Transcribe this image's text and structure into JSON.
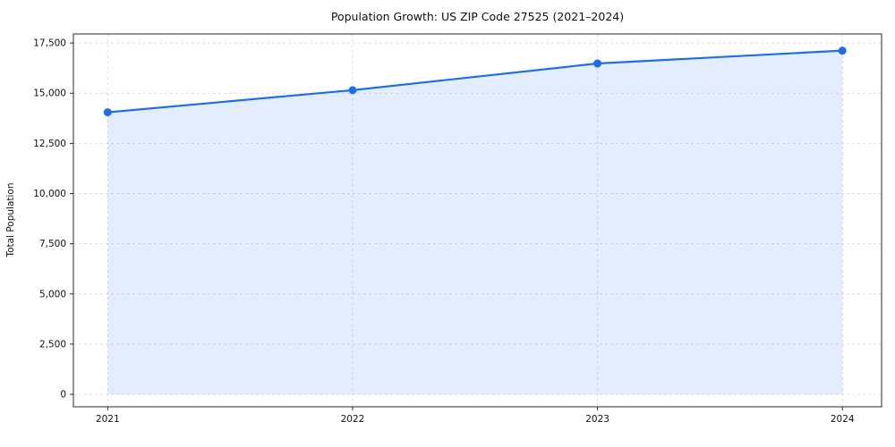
{
  "chart_data": {
    "type": "area",
    "title": "Population Growth: US ZIP Code 27525 (2021–2024)",
    "xlabel": "",
    "ylabel": "Total Population",
    "x": [
      2021,
      2022,
      2023,
      2024
    ],
    "xticklabels": [
      "2021",
      "2022",
      "2023",
      "2024"
    ],
    "series": [
      {
        "name": "Total Population",
        "values": [
          14050,
          15150,
          16480,
          17120
        ]
      }
    ],
    "yticks": [
      0,
      2500,
      5000,
      7500,
      10000,
      12500,
      15000,
      17500
    ],
    "ytick_labels": [
      "0",
      "2,500",
      "5,000",
      "7,500",
      "10,000",
      "12,500",
      "15,000",
      "17,500"
    ],
    "ylim": [
      -620,
      17950
    ],
    "xlim": [
      2020.86,
      2024.16
    ],
    "grid": "dashed-both",
    "legend_position": "none",
    "line_color": "#1f6de8",
    "area_fill_color": "#1f6de8",
    "area_fill_opacity": 0.12,
    "grid_color": "#d9d9d9",
    "spine_color": "#2a2a2a",
    "background_color": "#ffffff"
  }
}
